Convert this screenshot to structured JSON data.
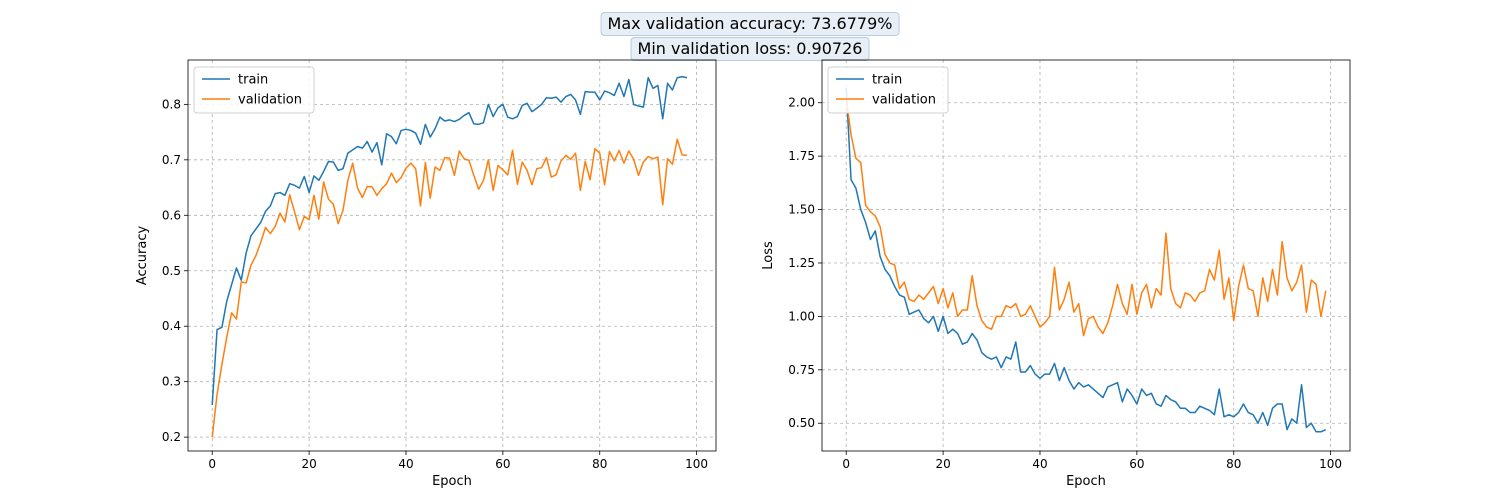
{
  "titles": {
    "line1": "Max validation accuracy: 73.6779%",
    "line2": "Min validation loss: 0.90726"
  },
  "chart_data": [
    {
      "type": "line",
      "xlabel": "Epoch",
      "ylabel": "Accuracy",
      "xlim": [
        -5,
        104
      ],
      "ylim": [
        0.175,
        0.88
      ],
      "xticks": [
        0,
        20,
        40,
        60,
        80,
        100
      ],
      "yticks": [
        0.2,
        0.3,
        0.4,
        0.5,
        0.6,
        0.7,
        0.8
      ],
      "xtick_labels": [
        "0",
        "20",
        "40",
        "60",
        "80",
        "100"
      ],
      "ytick_labels": [
        "0.2",
        "0.3",
        "0.4",
        "0.5",
        "0.6",
        "0.7",
        "0.8"
      ],
      "grid": true,
      "legend": "upper-left",
      "series": [
        {
          "name": "train",
          "color": "#1f77b4",
          "values": [
            0.258,
            0.394,
            0.398,
            0.445,
            0.475,
            0.505,
            0.483,
            0.532,
            0.563,
            0.575,
            0.587,
            0.607,
            0.617,
            0.639,
            0.641,
            0.636,
            0.657,
            0.654,
            0.649,
            0.67,
            0.641,
            0.671,
            0.663,
            0.679,
            0.697,
            0.696,
            0.681,
            0.684,
            0.712,
            0.718,
            0.724,
            0.721,
            0.733,
            0.714,
            0.731,
            0.691,
            0.747,
            0.742,
            0.729,
            0.753,
            0.755,
            0.753,
            0.748,
            0.728,
            0.764,
            0.741,
            0.756,
            0.777,
            0.77,
            0.772,
            0.769,
            0.773,
            0.78,
            0.785,
            0.765,
            0.764,
            0.767,
            0.8,
            0.778,
            0.794,
            0.8,
            0.777,
            0.774,
            0.778,
            0.798,
            0.802,
            0.787,
            0.793,
            0.8,
            0.812,
            0.811,
            0.813,
            0.804,
            0.814,
            0.818,
            0.808,
            0.782,
            0.823,
            0.822,
            0.822,
            0.808,
            0.824,
            0.821,
            0.816,
            0.838,
            0.814,
            0.845,
            0.8,
            0.797,
            0.795,
            0.848,
            0.829,
            0.834,
            0.774,
            0.838,
            0.826,
            0.848,
            0.85,
            0.848
          ]
        },
        {
          "name": "validation",
          "color": "#ff7f0e",
          "values": [
            0.2,
            0.277,
            0.331,
            0.38,
            0.424,
            0.413,
            0.48,
            0.478,
            0.51,
            0.527,
            0.551,
            0.578,
            0.567,
            0.58,
            0.604,
            0.588,
            0.637,
            0.606,
            0.574,
            0.598,
            0.592,
            0.636,
            0.593,
            0.66,
            0.629,
            0.62,
            0.585,
            0.609,
            0.663,
            0.694,
            0.649,
            0.632,
            0.652,
            0.651,
            0.636,
            0.648,
            0.657,
            0.676,
            0.659,
            0.668,
            0.685,
            0.694,
            0.684,
            0.617,
            0.695,
            0.631,
            0.687,
            0.681,
            0.704,
            0.703,
            0.672,
            0.716,
            0.702,
            0.699,
            0.672,
            0.647,
            0.663,
            0.7,
            0.645,
            0.69,
            0.682,
            0.673,
            0.717,
            0.656,
            0.696,
            0.681,
            0.655,
            0.684,
            0.686,
            0.704,
            0.669,
            0.673,
            0.698,
            0.708,
            0.701,
            0.712,
            0.645,
            0.697,
            0.664,
            0.72,
            0.712,
            0.655,
            0.715,
            0.698,
            0.717,
            0.694,
            0.716,
            0.701,
            0.672,
            0.696,
            0.706,
            0.702,
            0.705,
            0.619,
            0.702,
            0.692,
            0.737,
            0.709,
            0.708
          ]
        }
      ]
    },
    {
      "type": "line",
      "xlabel": "Epoch",
      "ylabel": "Loss",
      "xlim": [
        -5,
        104
      ],
      "ylim": [
        0.37,
        2.2
      ],
      "xticks": [
        0,
        20,
        40,
        60,
        80,
        100
      ],
      "yticks": [
        0.5,
        0.75,
        1.0,
        1.25,
        1.5,
        1.75,
        2.0
      ],
      "xtick_labels": [
        "0",
        "20",
        "40",
        "60",
        "80",
        "100"
      ],
      "ytick_labels": [
        "0.50",
        "0.75",
        "1.00",
        "1.25",
        "1.50",
        "1.75",
        "2.00"
      ],
      "grid": true,
      "legend": "upper-left",
      "series": [
        {
          "name": "train",
          "color": "#1f77b4",
          "values": [
            2.07,
            1.64,
            1.6,
            1.5,
            1.44,
            1.36,
            1.4,
            1.28,
            1.22,
            1.19,
            1.14,
            1.1,
            1.09,
            1.01,
            1.02,
            1.03,
            0.99,
            0.97,
            1.0,
            0.93,
            1.0,
            0.92,
            0.94,
            0.92,
            0.87,
            0.88,
            0.92,
            0.89,
            0.83,
            0.81,
            0.8,
            0.81,
            0.76,
            0.81,
            0.8,
            0.88,
            0.74,
            0.74,
            0.77,
            0.73,
            0.71,
            0.73,
            0.73,
            0.78,
            0.7,
            0.76,
            0.7,
            0.66,
            0.69,
            0.67,
            0.68,
            0.66,
            0.64,
            0.62,
            0.67,
            0.68,
            0.69,
            0.6,
            0.66,
            0.63,
            0.59,
            0.66,
            0.63,
            0.64,
            0.59,
            0.58,
            0.63,
            0.61,
            0.6,
            0.57,
            0.57,
            0.55,
            0.55,
            0.58,
            0.57,
            0.56,
            0.54,
            0.66,
            0.53,
            0.54,
            0.53,
            0.55,
            0.59,
            0.55,
            0.54,
            0.5,
            0.55,
            0.49,
            0.57,
            0.59,
            0.59,
            0.47,
            0.52,
            0.5,
            0.68,
            0.48,
            0.5,
            0.46,
            0.46,
            0.47
          ]
        },
        {
          "name": "validation",
          "color": "#ff7f0e",
          "values": [
            2.02,
            1.85,
            1.74,
            1.72,
            1.52,
            1.49,
            1.47,
            1.42,
            1.29,
            1.25,
            1.24,
            1.13,
            1.16,
            1.08,
            1.07,
            1.1,
            1.08,
            1.11,
            1.14,
            1.06,
            1.13,
            1.04,
            1.11,
            1.0,
            1.03,
            1.03,
            1.19,
            1.05,
            0.98,
            0.95,
            0.94,
            1.0,
            1.0,
            1.05,
            1.04,
            1.06,
            1.0,
            1.01,
            1.05,
            1.0,
            0.95,
            0.97,
            1.0,
            1.23,
            1.03,
            1.08,
            1.16,
            1.02,
            1.06,
            0.91,
            0.99,
            1.0,
            0.95,
            0.92,
            0.97,
            1.05,
            1.15,
            1.06,
            1.01,
            1.15,
            1.01,
            1.11,
            1.15,
            1.04,
            1.13,
            1.1,
            1.39,
            1.13,
            1.06,
            1.04,
            1.11,
            1.1,
            1.07,
            1.11,
            1.12,
            1.22,
            1.17,
            1.31,
            1.08,
            1.18,
            0.98,
            1.14,
            1.24,
            1.13,
            1.12,
            1.0,
            1.18,
            1.07,
            1.22,
            1.1,
            1.35,
            1.18,
            1.12,
            1.16,
            1.24,
            1.02,
            1.17,
            1.15,
            1.0,
            1.12
          ]
        }
      ]
    }
  ]
}
